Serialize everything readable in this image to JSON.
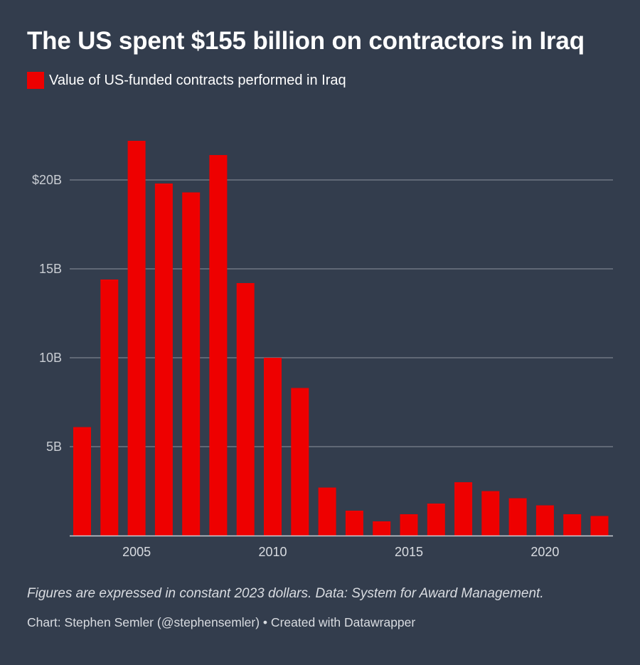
{
  "chart_data": {
    "type": "bar",
    "title": "The US spent $155 billion on contractors in Iraq",
    "legend": [
      {
        "label": "Value of US-funded contracts performed in Iraq",
        "color": "#ee0000"
      }
    ],
    "categories": [
      "2003",
      "2004",
      "2005",
      "2006",
      "2007",
      "2008",
      "2009",
      "2010",
      "2011",
      "2012",
      "2013",
      "2014",
      "2015",
      "2016",
      "2017",
      "2018",
      "2019",
      "2020",
      "2021",
      "2022"
    ],
    "series": [
      {
        "name": "Value of US-funded contracts performed in Iraq",
        "color": "#ee0000",
        "values": [
          6.1,
          14.4,
          22.2,
          19.8,
          19.3,
          21.4,
          14.2,
          10.0,
          8.3,
          2.7,
          1.4,
          0.8,
          1.2,
          1.8,
          3.0,
          2.5,
          2.1,
          1.7,
          1.2,
          1.1
        ]
      }
    ],
    "y_ticks": [
      {
        "value": 5,
        "label": "5B"
      },
      {
        "value": 10,
        "label": "10B"
      },
      {
        "value": 15,
        "label": "15B"
      },
      {
        "value": 20,
        "label": "$20B"
      }
    ],
    "x_ticks": [
      "2005",
      "2010",
      "2015",
      "2020"
    ],
    "ylim": [
      0,
      22.2
    ],
    "grid": true,
    "legend_position": "top-left",
    "notes": "Figures are expressed in constant 2023 dollars. Data: System for Award Management.",
    "credit": "Chart: Stephen Semler (@stephensemler) • Created with Datawrapper"
  },
  "colors": {
    "background": "#333d4d",
    "bar": "#ee0000",
    "grid": "#8c939d",
    "axis": "#c9cdd3"
  }
}
